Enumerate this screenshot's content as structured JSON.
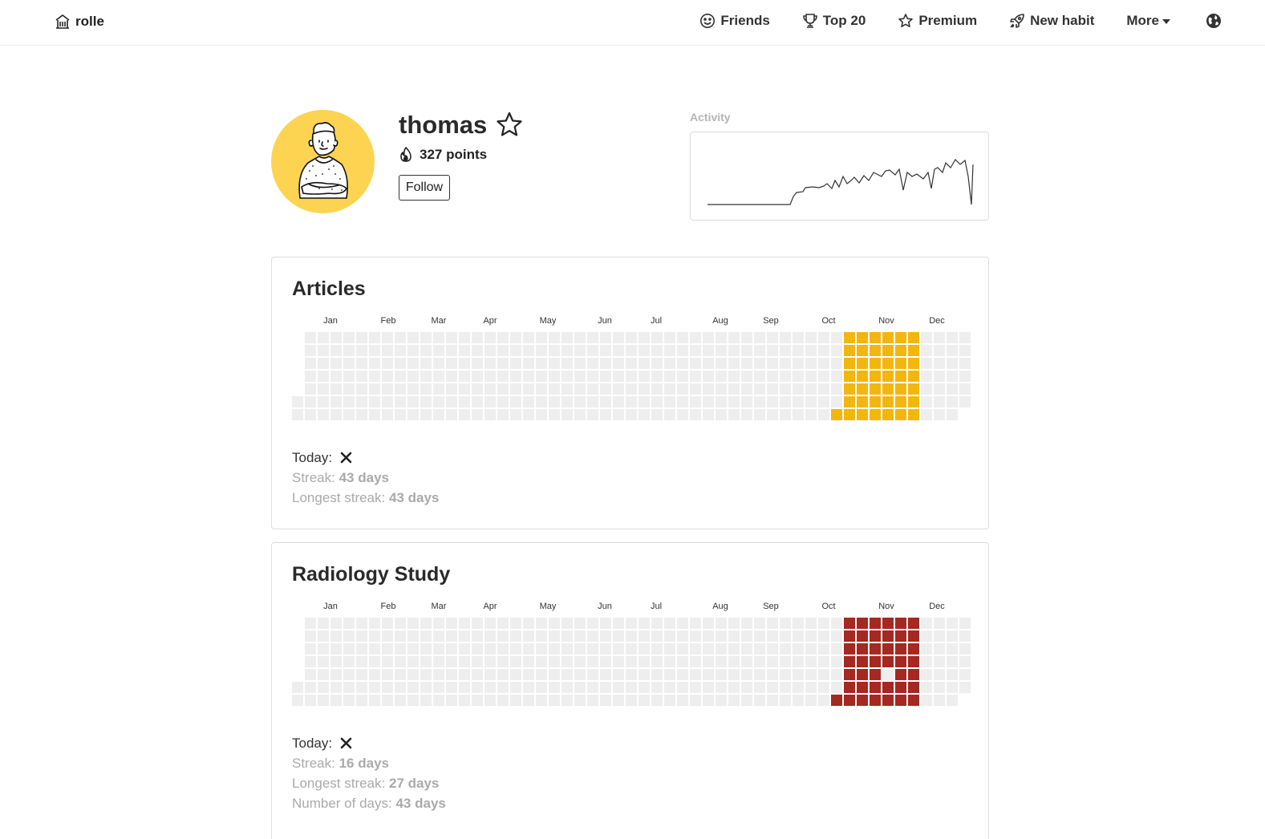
{
  "nav": {
    "brand": "rolle",
    "items": [
      {
        "label": "Friends",
        "icon": "smile-icon"
      },
      {
        "label": "Top 20",
        "icon": "trophy-icon"
      },
      {
        "label": "Premium",
        "icon": "star-icon"
      },
      {
        "label": "New habit",
        "icon": "rocket-icon"
      }
    ],
    "more_label": "More",
    "globe_icon": "globe-icon"
  },
  "profile": {
    "username": "thomas",
    "points": "327 points",
    "follow_label": "Follow",
    "activity_label": "Activity"
  },
  "colors": {
    "articles": "#f2b70e",
    "radiology": "#a52821",
    "empty": "#eeeeee"
  },
  "months": [
    "Jan",
    "Feb",
    "Mar",
    "Apr",
    "May",
    "Jun",
    "Jul",
    "Aug",
    "Sep",
    "Oct",
    "Nov",
    "Dec"
  ],
  "habits": [
    {
      "title": "Articles",
      "today_label": "Today:",
      "stats": [
        {
          "label": "Streak:",
          "value": "43 days"
        },
        {
          "label": "Longest streak:",
          "value": "43 days"
        }
      ]
    },
    {
      "title": "Radiology Study",
      "today_label": "Today:",
      "stats": [
        {
          "label": "Streak:",
          "value": "16 days"
        },
        {
          "label": "Longest streak:",
          "value": "27 days"
        },
        {
          "label": "Number of days:",
          "value": "43 days"
        }
      ]
    }
  ]
}
